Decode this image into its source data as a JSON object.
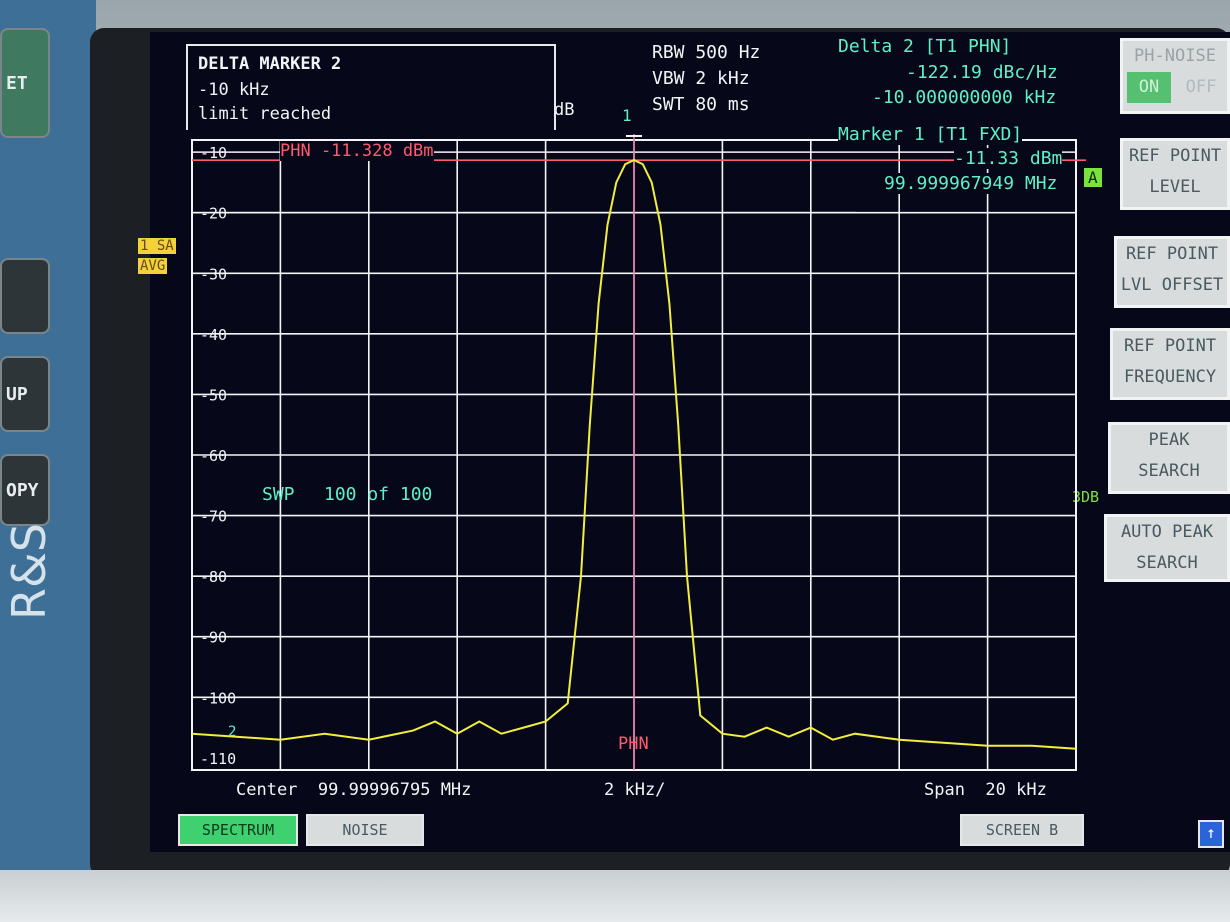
{
  "message_box": {
    "title": "DELTA MARKER 2",
    "line1": "-10 kHz",
    "line2": "limit reached"
  },
  "settings": {
    "rbw": "RBW 500 Hz",
    "vbw": "VBW 2 kHz",
    "swt": "SWT 80 ms"
  },
  "delta_marker": {
    "label": "Delta 2 [T1 PHN]",
    "level": "-122.19 dBc/Hz",
    "offset": "-10.000000000 kHz"
  },
  "marker1": {
    "label": "Marker 1 [T1 FXD]",
    "level": "-11.33 dBm",
    "freq": "99.999967949 MHz",
    "number": "1",
    "number2": "2"
  },
  "unit_label": "dB",
  "phn_line_label": "PHN -11.328 dBm",
  "phn_marker_label": "PHN",
  "trace_badge": {
    "l1": "1 SA",
    "l2": "AVG"
  },
  "trace_a": "A",
  "threedb": "3DB",
  "sweep": {
    "label": "SWP",
    "count": "100 of 100"
  },
  "y_ticks": [
    "-10",
    "-20",
    "-30",
    "-40",
    "-50",
    "-60",
    "-70",
    "-80",
    "-90",
    "-100",
    "-110"
  ],
  "footer": {
    "center": "Center  99.99996795 MHz",
    "div": "2 kHz/",
    "span": "Span  20 kHz"
  },
  "softkeys": {
    "ph_noise": {
      "title": "PH-NOISE",
      "on": "ON",
      "off": "OFF"
    },
    "ref_level": {
      "l1": "REF POINT",
      "l2": "LEVEL"
    },
    "ref_offset": {
      "l1": "REF POINT",
      "l2": "LVL OFFSET"
    },
    "ref_freq": {
      "l1": "REF POINT",
      "l2": "FREQUENCY"
    },
    "peak": {
      "l1": "PEAK",
      "l2": "SEARCH"
    },
    "auto_peak": {
      "l1": "AUTO PEAK",
      "l2": "SEARCH"
    }
  },
  "bottom_buttons": {
    "spectrum": "SPECTRUM",
    "noise": "NOISE",
    "screen_b": "SCREEN B",
    "arrow": "↑"
  },
  "hw_buttons": {
    "b1": "ET",
    "b2": "",
    "b3": "UP",
    "b4": "OPY"
  },
  "brand": "R&S",
  "colors": {
    "trace": "#f2ee3c",
    "grid": "#f2f4f6",
    "cyan": "#5ff0c8",
    "red": "#ff5a6e",
    "screen_bg": "#06081a"
  },
  "chart_data": {
    "type": "line",
    "xlabel": "",
    "ylabel": "dB",
    "xlim": [
      -10,
      10
    ],
    "ylim": [
      -112,
      -8
    ],
    "ref_level": -11.328,
    "x_unit": "kHz offset from center",
    "series": [
      {
        "x": [
          -10,
          -9,
          -8,
          -7,
          -6,
          -5,
          -4.5,
          -4,
          -3.5,
          -3,
          -2.5,
          -2,
          -1.5,
          -1.2,
          -1.0,
          -0.8,
          -0.6,
          -0.4,
          -0.2,
          0,
          0.2,
          0.4,
          0.6,
          0.8,
          1.0,
          1.2,
          1.5,
          2,
          2.5,
          3,
          3.5,
          4,
          4.5,
          5,
          6,
          7,
          8,
          9,
          10
        ],
        "y": [
          -106,
          -106.5,
          -107,
          -106,
          -107,
          -105.5,
          -104,
          -106,
          -104,
          -106,
          -105,
          -104,
          -101,
          -80,
          -55,
          -35,
          -22,
          -15,
          -12,
          -11.3,
          -12,
          -15,
          -22,
          -35,
          -55,
          -80,
          -103,
          -106,
          -106.5,
          -105,
          -106.5,
          -105,
          -107,
          -106,
          -107,
          -107.5,
          -108,
          -108,
          -108.5
        ]
      }
    ]
  }
}
